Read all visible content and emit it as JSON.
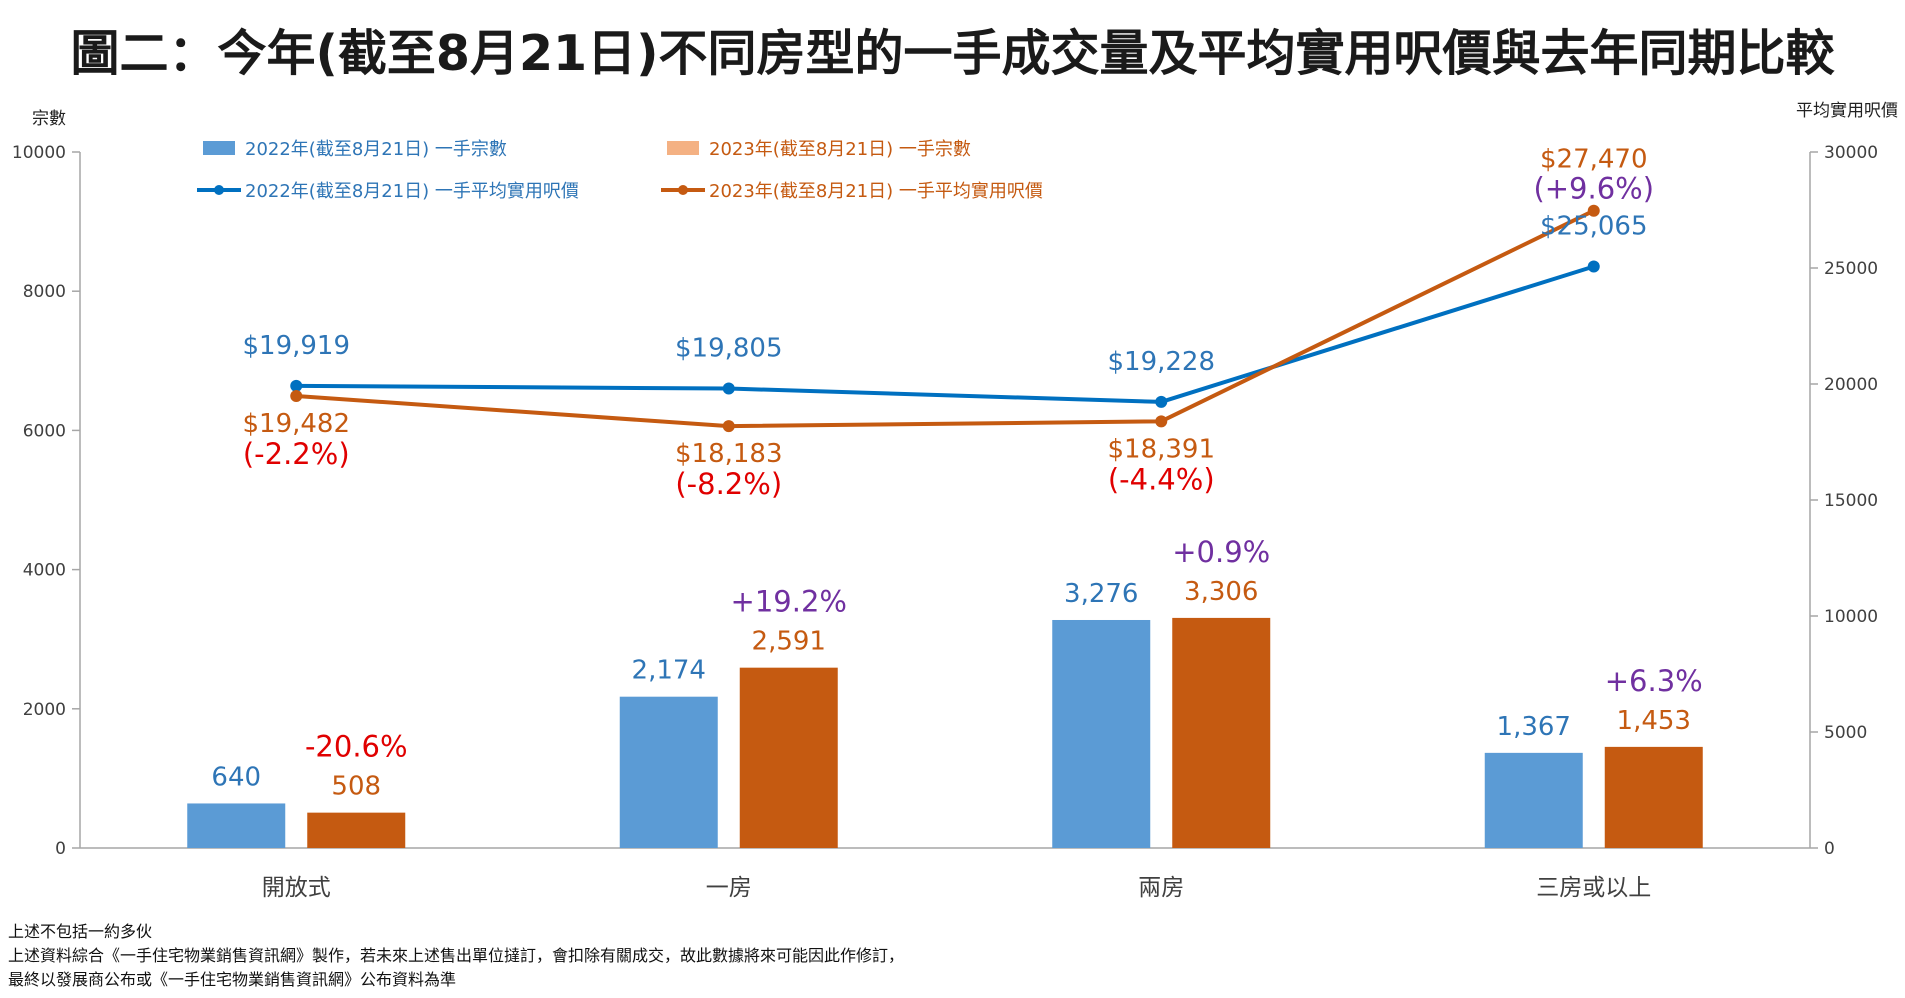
{
  "chart_data": {
    "type": "bar",
    "title": "圖二：今年(截至8月21日)不同房型的一手成交量及平均實用呎價與去年同期比較",
    "categories": [
      "開放式",
      "一房",
      "兩房",
      "三房或以上"
    ],
    "left_axis": {
      "label": "宗數",
      "ylim": [
        0,
        10000
      ],
      "ticks": [
        "0",
        "2000",
        "4000",
        "6000",
        "8000",
        "10000"
      ]
    },
    "right_axis": {
      "label": "平均實用呎價",
      "ylim": [
        0,
        30000
      ],
      "ticks": [
        "0",
        "5000",
        "10000",
        "15000",
        "20000",
        "25000",
        "30000"
      ]
    },
    "series": [
      {
        "name": "2022年(截至8月21日) 一手宗數",
        "kind": "bar",
        "axis": "left",
        "color": "#5b9bd5",
        "values": [
          640,
          2174,
          3276,
          1367
        ],
        "labels": [
          "640",
          "2,174",
          "3,276",
          "1,367"
        ],
        "label_color": "#2e75b6"
      },
      {
        "name": "2023年(截至8月21日) 一手宗數",
        "kind": "bar",
        "axis": "left",
        "color": "#c55a11",
        "legend_color": "#f4b183",
        "values": [
          508,
          2591,
          3306,
          1453
        ],
        "labels": [
          "508",
          "2,591",
          "3,306",
          "1,453"
        ],
        "label_color": "#c55a11",
        "changes": [
          "-20.6%",
          "+19.2%",
          "+0.9%",
          "+6.3%"
        ]
      },
      {
        "name": "2022年(截至8月21日) 一手平均實用呎價",
        "kind": "line",
        "axis": "right",
        "color": "#0070c0",
        "values": [
          19919,
          19805,
          19228,
          25065
        ],
        "labels": [
          "$19,919",
          "$19,805",
          "$19,228",
          "$25,065"
        ],
        "label_color": "#2e75b6"
      },
      {
        "name": "2023年(截至8月21日) 一手平均實用呎價",
        "kind": "line",
        "axis": "right",
        "color": "#c55a11",
        "values": [
          19482,
          18183,
          18391,
          27470
        ],
        "labels": [
          "$19,482",
          "$18,183",
          "$18,391",
          "$27,470"
        ],
        "label_color": "#c55a11",
        "changes": [
          "(-2.2%)",
          "(-8.2%)",
          "(-4.4%)",
          "(+9.6%)"
        ]
      }
    ],
    "colors": {
      "negative": "#e00000",
      "positive": "#7030a0",
      "axis": "#a6a6a6",
      "text": "#404040"
    }
  },
  "notes": [
    "上述不包括一約多伙",
    "上述資料綜合《一手住宅物業銷售資訊網》製作，若未來上述售出單位撻訂，會扣除有關成交，故此數據將來可能因此作修訂，",
    "最終以發展商公布或《一手住宅物業銷售資訊網》公布資料為準"
  ]
}
